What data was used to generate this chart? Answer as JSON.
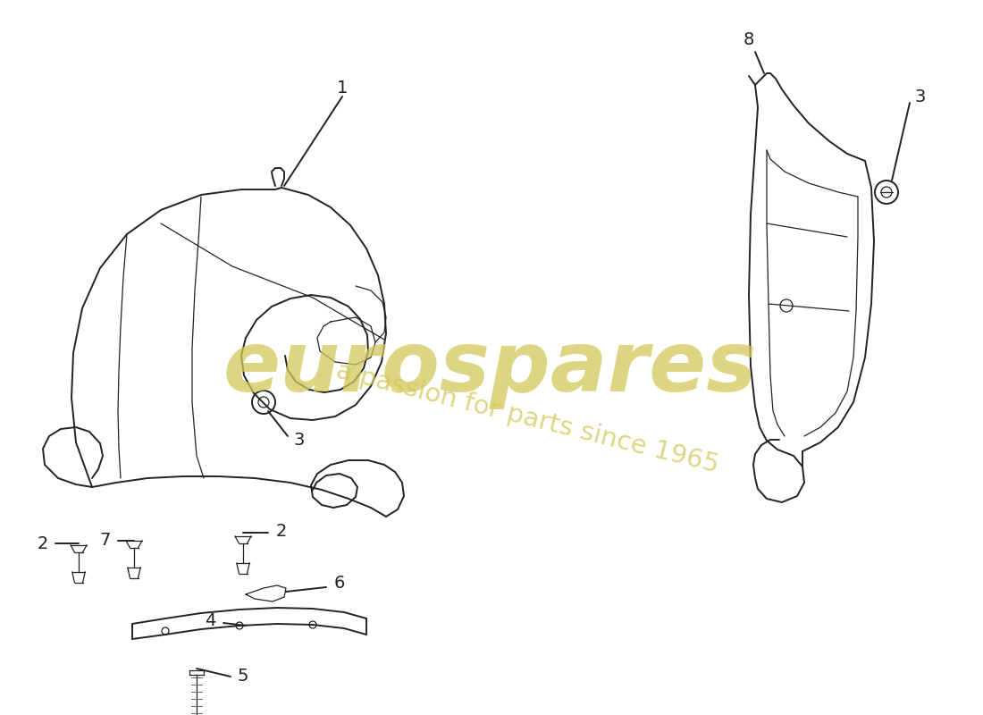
{
  "background_color": "#ffffff",
  "line_color": "#222222",
  "watermark_color1": "#d4c85a",
  "watermark_color2": "#c8b840",
  "lw_main": 1.4,
  "lw_thin": 0.9
}
